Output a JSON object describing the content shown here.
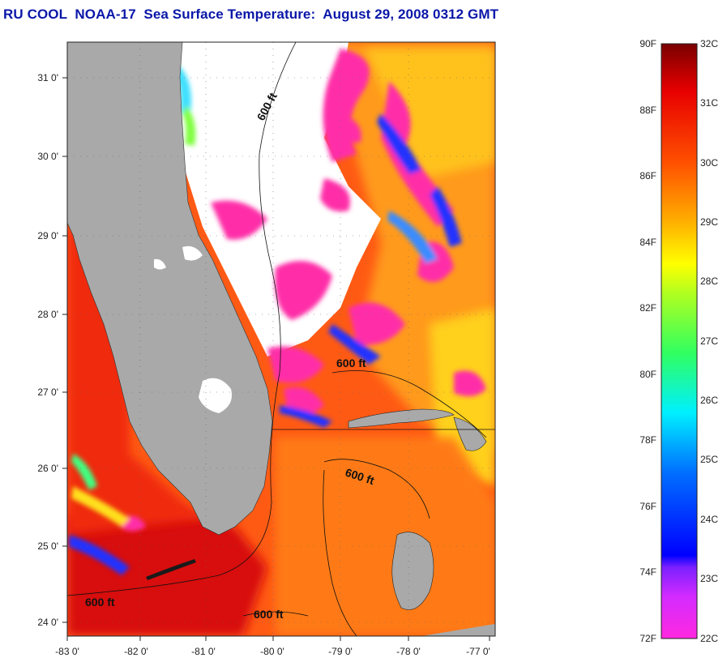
{
  "title": "RU COOL  NOAA-17  Sea Surface Temperature:  August 29, 2008 0312 GMT",
  "map": {
    "lat_labels": [
      "31 0'",
      "30 0'",
      "29 0'",
      "28 0'",
      "27 0'",
      "26 0'",
      "25 0'",
      "24 0'"
    ],
    "lon_labels": [
      "-83 0'",
      "-82 0'",
      "-81 0'",
      "-80 0'",
      "-79 0'",
      "-78 0'",
      "-77 0'"
    ],
    "contour_labels": [
      "600 ft",
      "600 ft",
      "600 ft",
      "600 ft",
      "600 ft"
    ],
    "colors": {
      "land": "#a9a9a9",
      "cloud": "#ffffff",
      "warm": "#ff3a12",
      "hot": "#e01010",
      "orange": "#ff8c1a",
      "yellow": "#ffd21a",
      "blue": "#1a2cff",
      "magenta": "#ff2da8"
    }
  },
  "colorbar": {
    "f_labels": [
      "90F",
      "88F",
      "86F",
      "84F",
      "82F",
      "80F",
      "78F",
      "76F",
      "74F",
      "72F"
    ],
    "c_labels": [
      "32C",
      "31C",
      "30C",
      "29C",
      "28C",
      "27C",
      "26C",
      "25C",
      "24C",
      "23C",
      "22C"
    ],
    "range_f": [
      72,
      90
    ],
    "range_c": [
      22,
      32
    ]
  }
}
